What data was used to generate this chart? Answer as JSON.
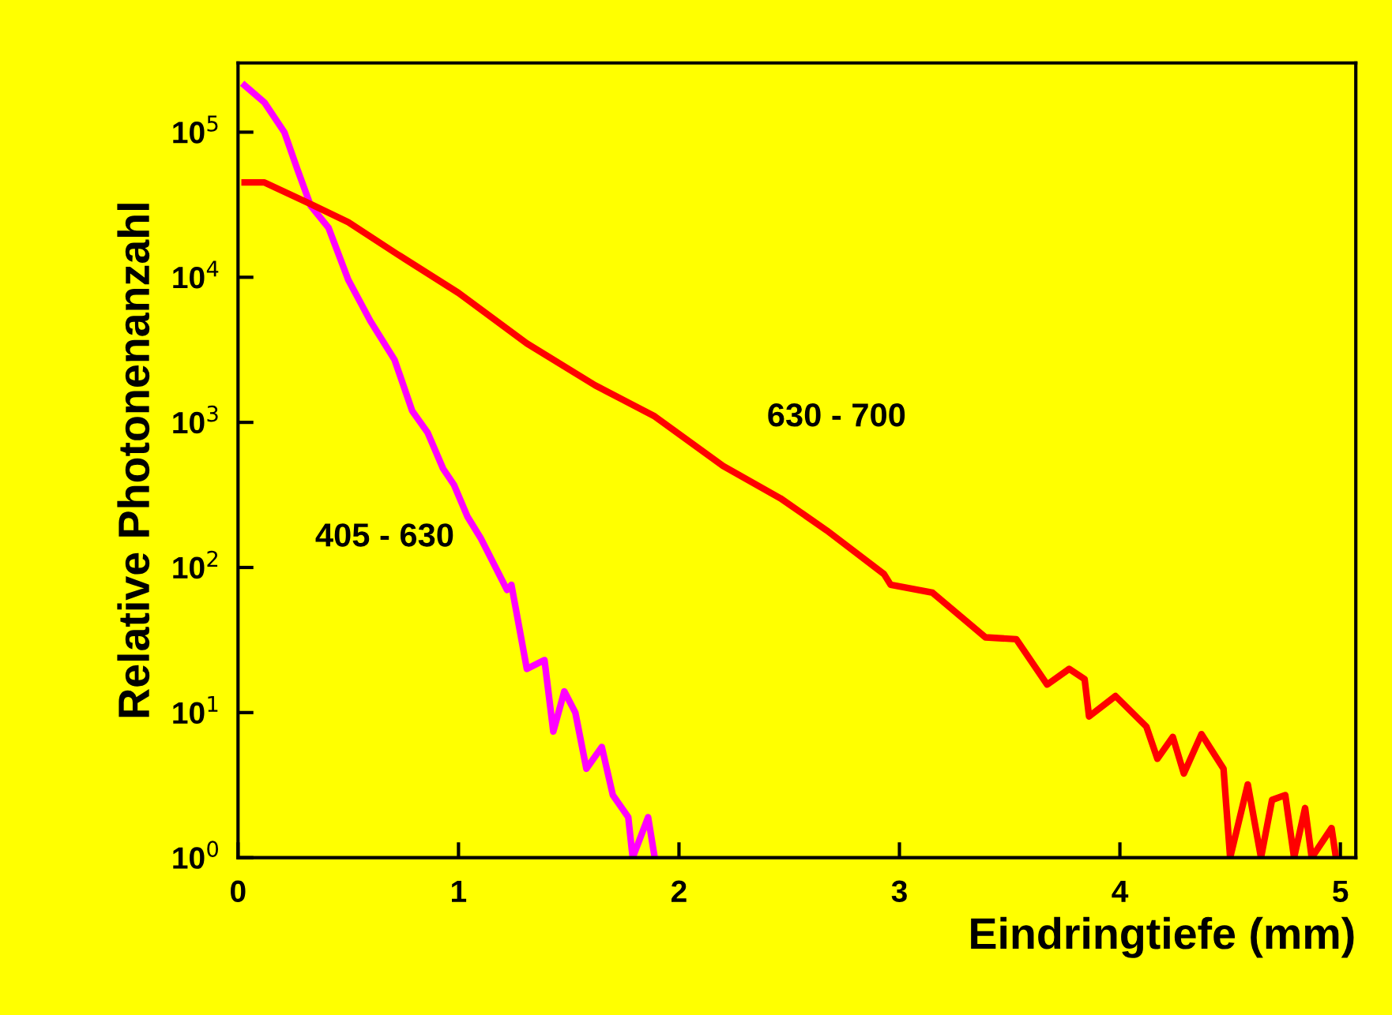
{
  "chart_data": {
    "type": "line",
    "xlabel": "Eindringtiefe (mm)",
    "ylabel": "Relative Photonenanzahl",
    "log": "y",
    "xlim": [
      0,
      5.07
    ],
    "ylim": [
      1,
      300000
    ],
    "xticks": [
      0,
      1,
      2,
      3,
      4,
      5
    ],
    "yticks": [
      {
        "value": 1,
        "label": "10$^{0}$"
      },
      {
        "value": 10,
        "label": "10$^{1}$"
      },
      {
        "value": 100,
        "label": "10$^{2}$"
      },
      {
        "value": 1000,
        "label": "10$^{3}$"
      },
      {
        "value": 10000,
        "label": "10$^{4}$"
      },
      {
        "value": 100000,
        "label": "10$^{5}$"
      }
    ],
    "grid": false,
    "legend": false,
    "marker": "none",
    "line_style": "solid",
    "series": [
      {
        "name": "405 - 630",
        "color": "#ff00ff",
        "x": [
          0.03,
          0.12,
          0.21,
          0.27,
          0.33,
          0.41,
          0.5,
          0.6,
          0.71,
          0.79,
          0.86,
          0.93,
          0.98,
          1.04,
          1.1,
          1.22,
          1.24,
          1.31,
          1.39,
          1.43,
          1.48,
          1.53,
          1.58,
          1.65,
          1.7,
          1.77,
          1.79,
          1.86,
          1.89
        ],
        "values": [
          210000,
          160000,
          100000,
          55000,
          31000,
          22000,
          9600,
          5000,
          2700,
          1200,
          850,
          480,
          370,
          225,
          160,
          70,
          76,
          20,
          23,
          7.4,
          14,
          10,
          4.1,
          5.8,
          2.7,
          1.9,
          1,
          1.9,
          1
        ]
      },
      {
        "name": "630 - 700",
        "color": "#ff0000",
        "x": [
          0.03,
          0.12,
          0.31,
          0.5,
          0.72,
          1.0,
          1.31,
          1.62,
          1.89,
          2.2,
          2.46,
          2.67,
          2.93,
          2.96,
          3.15,
          3.39,
          3.53,
          3.67,
          3.77,
          3.84,
          3.86,
          3.98,
          4.12,
          4.17,
          4.24,
          4.29,
          4.37,
          4.47,
          4.5,
          4.58,
          4.64,
          4.69,
          4.75,
          4.79,
          4.84,
          4.87,
          4.96,
          4.98
        ],
        "values": [
          45000,
          45000,
          33000,
          24000,
          14500,
          7800,
          3500,
          1800,
          1100,
          500,
          300,
          180,
          90,
          76,
          67,
          33,
          32,
          15.6,
          20,
          17,
          9.4,
          13,
          8,
          4.8,
          6.8,
          3.8,
          7.1,
          4.1,
          1,
          3.2,
          1,
          2.5,
          2.7,
          1,
          2.2,
          1,
          1.6,
          1
        ]
      }
    ]
  }
}
